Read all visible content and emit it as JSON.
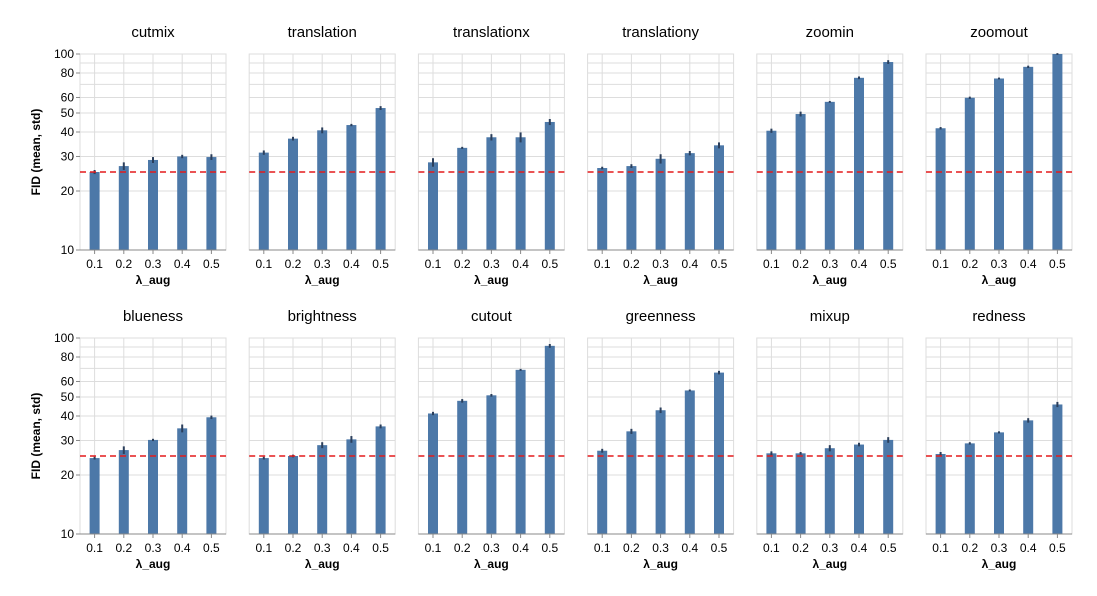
{
  "colors": {
    "bar": "#4c78a8",
    "error_bar": "#2b3f5c",
    "reference_line": "#e41a1c",
    "grid": "#dddddd"
  },
  "chart_data": [
    {
      "type": "bar",
      "title": "cutmix",
      "xlabel": "λ_aug",
      "ylabel": "FID (mean, std)",
      "yscale": "log",
      "ylim": [
        10,
        100
      ],
      "yticks": [
        10,
        20,
        30,
        40,
        50,
        60,
        80,
        100
      ],
      "reference_line": 25,
      "categories": [
        "0.1",
        "0.2",
        "0.3",
        "0.4",
        "0.5"
      ],
      "values": [
        25,
        26.8,
        28.8,
        30,
        29.8
      ],
      "error": [
        0.6,
        1.2,
        1.0,
        0.6,
        1.0
      ]
    },
    {
      "type": "bar",
      "title": "translation",
      "xlabel": "λ_aug",
      "ylabel": "FID (mean, std)",
      "yscale": "log",
      "ylim": [
        10,
        100
      ],
      "yticks": [
        10,
        20,
        30,
        40,
        50,
        60,
        80,
        100
      ],
      "reference_line": 25,
      "categories": [
        "0.1",
        "0.2",
        "0.3",
        "0.4",
        "0.5"
      ],
      "values": [
        31.4,
        37,
        40.8,
        43.4,
        53
      ],
      "error": [
        0.8,
        0.8,
        1.4,
        0.6,
        1.2
      ]
    },
    {
      "type": "bar",
      "title": "translationx",
      "xlabel": "λ_aug",
      "ylabel": "FID (mean, std)",
      "yscale": "log",
      "ylim": [
        10,
        100
      ],
      "yticks": [
        10,
        20,
        30,
        40,
        50,
        60,
        80,
        100
      ],
      "reference_line": 25,
      "categories": [
        "0.1",
        "0.2",
        "0.3",
        "0.4",
        "0.5"
      ],
      "values": [
        28,
        33.2,
        37.6,
        37.6,
        45
      ],
      "error": [
        1.4,
        0.4,
        1.4,
        2.2,
        1.6
      ]
    },
    {
      "type": "bar",
      "title": "translationy",
      "xlabel": "λ_aug",
      "ylabel": "FID (mean, std)",
      "yscale": "log",
      "ylim": [
        10,
        100
      ],
      "yticks": [
        10,
        20,
        30,
        40,
        50,
        60,
        80,
        100
      ],
      "reference_line": 25,
      "categories": [
        "0.1",
        "0.2",
        "0.3",
        "0.4",
        "0.5"
      ],
      "values": [
        26.2,
        26.8,
        29.2,
        31.2,
        34.2
      ],
      "error": [
        0.4,
        0.6,
        1.6,
        0.8,
        1.2
      ]
    },
    {
      "type": "bar",
      "title": "zoomin",
      "xlabel": "λ_aug",
      "ylabel": "FID (mean, std)",
      "yscale": "log",
      "ylim": [
        10,
        100
      ],
      "yticks": [
        10,
        20,
        30,
        40,
        50,
        60,
        80,
        100
      ],
      "reference_line": 25,
      "categories": [
        "0.1",
        "0.2",
        "0.3",
        "0.4",
        "0.5"
      ],
      "values": [
        40.6,
        49.4,
        57,
        75.6,
        91
      ],
      "error": [
        1.0,
        1.4,
        0.6,
        1.2,
        2.0
      ]
    },
    {
      "type": "bar",
      "title": "zoomout",
      "xlabel": "λ_aug",
      "ylabel": "FID (mean, std)",
      "yscale": "log",
      "ylim": [
        10,
        100
      ],
      "yticks": [
        10,
        20,
        30,
        40,
        50,
        60,
        80,
        100
      ],
      "reference_line": 25,
      "categories": [
        "0.1",
        "0.2",
        "0.3",
        "0.4",
        "0.5"
      ],
      "values": [
        41.8,
        59.8,
        75,
        86,
        100
      ],
      "error": [
        0.6,
        0.8,
        0.8,
        1.2,
        1.0
      ]
    },
    {
      "type": "bar",
      "title": "blueness",
      "xlabel": "λ_aug",
      "ylabel": "FID (mean, std)",
      "yscale": "log",
      "ylim": [
        10,
        100
      ],
      "yticks": [
        10,
        20,
        30,
        40,
        50,
        60,
        80,
        100
      ],
      "reference_line": 25,
      "categories": [
        "0.1",
        "0.2",
        "0.3",
        "0.4",
        "0.5"
      ],
      "values": [
        24.4,
        26.8,
        30.2,
        34.6,
        39.4
      ],
      "error": [
        0.4,
        1.2,
        0.4,
        1.6,
        0.8
      ]
    },
    {
      "type": "bar",
      "title": "brightness",
      "xlabel": "λ_aug",
      "ylabel": "FID (mean, std)",
      "yscale": "log",
      "ylim": [
        10,
        100
      ],
      "yticks": [
        10,
        20,
        30,
        40,
        50,
        60,
        80,
        100
      ],
      "reference_line": 25,
      "categories": [
        "0.1",
        "0.2",
        "0.3",
        "0.4",
        "0.5"
      ],
      "values": [
        24.4,
        25,
        28.4,
        30.4,
        35.4
      ],
      "error": [
        0.4,
        0.4,
        1.0,
        1.2,
        0.8
      ]
    },
    {
      "type": "bar",
      "title": "cutout",
      "xlabel": "λ_aug",
      "ylabel": "FID (mean, std)",
      "yscale": "log",
      "ylim": [
        10,
        100
      ],
      "yticks": [
        10,
        20,
        30,
        40,
        50,
        60,
        80,
        100
      ],
      "reference_line": 25,
      "categories": [
        "0.1",
        "0.2",
        "0.3",
        "0.4",
        "0.5"
      ],
      "values": [
        41.2,
        47.8,
        51,
        68.8,
        91.2
      ],
      "error": [
        0.8,
        1.0,
        0.8,
        0.8,
        2.0
      ]
    },
    {
      "type": "bar",
      "title": "greenness",
      "xlabel": "λ_aug",
      "ylabel": "FID (mean, std)",
      "yscale": "log",
      "ylim": [
        10,
        100
      ],
      "yticks": [
        10,
        20,
        30,
        40,
        50,
        60,
        80,
        100
      ],
      "reference_line": 25,
      "categories": [
        "0.1",
        "0.2",
        "0.3",
        "0.4",
        "0.5"
      ],
      "values": [
        26.6,
        33.4,
        42.8,
        54,
        66.6
      ],
      "error": [
        0.6,
        1.0,
        1.4,
        0.6,
        1.4
      ]
    },
    {
      "type": "bar",
      "title": "mixup",
      "xlabel": "λ_aug",
      "ylabel": "FID (mean, std)",
      "yscale": "log",
      "ylim": [
        10,
        100
      ],
      "yticks": [
        10,
        20,
        30,
        40,
        50,
        60,
        80,
        100
      ],
      "reference_line": 25,
      "categories": [
        "0.1",
        "0.2",
        "0.3",
        "0.4",
        "0.5"
      ],
      "values": [
        25.8,
        25.8,
        27.4,
        28.6,
        30.2
      ],
      "error": [
        0.6,
        0.4,
        1.0,
        0.6,
        1.0
      ]
    },
    {
      "type": "bar",
      "title": "redness",
      "xlabel": "λ_aug",
      "ylabel": "FID (mean, std)",
      "yscale": "log",
      "ylim": [
        10,
        100
      ],
      "yticks": [
        10,
        20,
        30,
        40,
        50,
        60,
        80,
        100
      ],
      "reference_line": 25,
      "categories": [
        "0.1",
        "0.2",
        "0.3",
        "0.4",
        "0.5"
      ],
      "values": [
        25.6,
        29,
        33,
        38,
        45.8
      ],
      "error": [
        0.6,
        0.4,
        0.4,
        1.0,
        1.4
      ]
    }
  ]
}
